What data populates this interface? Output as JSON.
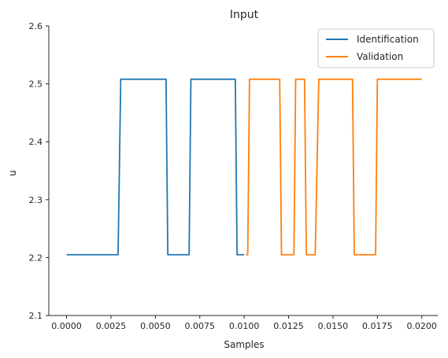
{
  "chart_data": {
    "type": "line",
    "title": "Input",
    "xlabel": "Samples",
    "ylabel": "u",
    "xlim": [
      -0.001,
      0.0209
    ],
    "ylim": [
      2.1,
      2.6
    ],
    "xticks": [
      "0.0000",
      "0.0025",
      "0.0050",
      "0.0075",
      "0.0100",
      "0.0125",
      "0.0150",
      "0.0175",
      "0.0200"
    ],
    "xtick_values": [
      0,
      0.0025,
      0.005,
      0.0075,
      0.01,
      0.0125,
      0.015,
      0.0175,
      0.02
    ],
    "yticks": [
      "2.1",
      "2.2",
      "2.3",
      "2.4",
      "2.5",
      "2.6"
    ],
    "ytick_values": [
      2.1,
      2.2,
      2.3,
      2.4,
      2.5,
      2.6
    ],
    "grid": false,
    "legend_position": "top-right",
    "series": [
      {
        "name": "Identification",
        "color": "#1f77b4",
        "x": [
          0,
          0.0029,
          0.00305,
          0.0056,
          0.0057,
          0.0069,
          0.007,
          0.0095,
          0.0096,
          0.01
        ],
        "y": [
          2.205,
          2.205,
          2.508,
          2.508,
          2.205,
          2.205,
          2.508,
          2.508,
          2.205,
          2.205
        ]
      },
      {
        "name": "Validation",
        "color": "#ff7f0e",
        "x": [
          0.0101,
          0.0102,
          0.0103,
          0.012,
          0.0121,
          0.0128,
          0.0129,
          0.0134,
          0.0135,
          0.014,
          0.0142,
          0.0161,
          0.0162,
          0.0174,
          0.0175,
          0.02
        ],
        "y": [
          2.205,
          2.205,
          2.508,
          2.508,
          2.205,
          2.205,
          2.508,
          2.508,
          2.205,
          2.205,
          2.508,
          2.508,
          2.205,
          2.205,
          2.508,
          2.508
        ]
      }
    ]
  }
}
